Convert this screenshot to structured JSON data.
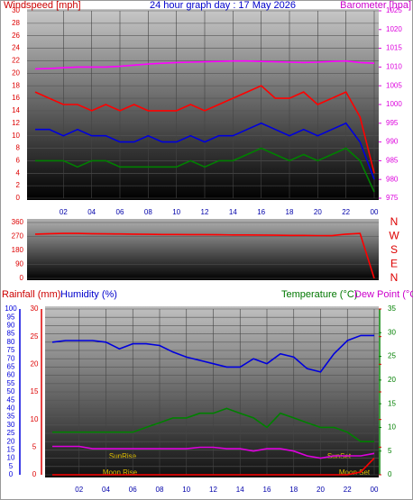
{
  "chart_data": [
    {
      "type": "line",
      "title": "24 hour graph day : 17 May 2026",
      "ylabel": "Windspeed [mph]",
      "y2label": "Barometer [hpa]",
      "x": [
        0,
        1,
        2,
        3,
        4,
        5,
        6,
        7,
        8,
        9,
        10,
        11,
        12,
        13,
        14,
        15,
        16,
        17,
        18,
        19,
        20,
        21,
        22,
        23,
        24
      ],
      "xlim": [
        0,
        24
      ],
      "xticks": [
        {
          "value": 2,
          "label": "02"
        },
        {
          "value": 4,
          "label": "04"
        },
        {
          "value": 6,
          "label": "06"
        },
        {
          "value": 8,
          "label": "08"
        },
        10,
        12,
        14,
        16,
        18,
        20,
        22,
        {
          "value": 24,
          "label": "00"
        }
      ],
      "ylim": [
        0,
        30
      ],
      "yticks": [
        0,
        2,
        4,
        6,
        8,
        10,
        12,
        14,
        16,
        18,
        20,
        22,
        24,
        26,
        28,
        30
      ],
      "y2lim": [
        975,
        1025
      ],
      "y2ticks": [
        975,
        980,
        985,
        990,
        995,
        1000,
        1005,
        1010,
        1015,
        1020,
        1025
      ],
      "series": [
        {
          "color": "#ff0000",
          "values": [
            17,
            16,
            15,
            15,
            14,
            15,
            14,
            15,
            14,
            14,
            14,
            15,
            14,
            15,
            16,
            17,
            18,
            16,
            16,
            17,
            15,
            16,
            17,
            13,
            4
          ]
        },
        {
          "color": "#0000dd",
          "values": [
            11,
            11,
            10,
            11,
            10,
            10,
            9,
            9,
            10,
            9,
            9,
            10,
            9,
            10,
            10,
            11,
            12,
            11,
            10,
            11,
            10,
            11,
            12,
            9,
            3
          ]
        },
        {
          "color": "#008000",
          "values": [
            6,
            6,
            6,
            5,
            6,
            6,
            5,
            5,
            5,
            5,
            5,
            6,
            5,
            6,
            6,
            7,
            8,
            7,
            6,
            7,
            6,
            7,
            8,
            6,
            1
          ]
        },
        {
          "color": "#ff00ff",
          "axis": "y2",
          "values": [
            1009.5,
            1009.6,
            1009.8,
            1010,
            1010,
            1010,
            1010.2,
            1010.5,
            1010.8,
            1011,
            1011.2,
            1011.3,
            1011.4,
            1011.5,
            1011.6,
            1011.6,
            1011.5,
            1011.4,
            1011.3,
            1011.2,
            1011.3,
            1011.5,
            1011.6,
            1011.2,
            1011
          ]
        }
      ]
    },
    {
      "type": "line",
      "x": [
        0,
        1,
        2,
        3,
        4,
        5,
        6,
        7,
        8,
        9,
        10,
        11,
        12,
        13,
        14,
        15,
        16,
        17,
        18,
        19,
        20,
        21,
        22,
        23,
        24
      ],
      "xlim": [
        0,
        24
      ],
      "ylim": [
        0,
        360
      ],
      "yticks": [
        0,
        90,
        180,
        270,
        360
      ],
      "compass": [
        "N",
        "W",
        "S",
        "E",
        "N"
      ],
      "series": [
        {
          "color": "#ff0000",
          "values": [
            285,
            288,
            290,
            290,
            288,
            287,
            286,
            285,
            284,
            283,
            283,
            282,
            282,
            281,
            280,
            280,
            279,
            278,
            277,
            277,
            276,
            275,
            285,
            290,
            0
          ]
        }
      ]
    },
    {
      "type": "line",
      "x": [
        0,
        1,
        2,
        3,
        4,
        5,
        6,
        7,
        8,
        9,
        10,
        11,
        12,
        13,
        14,
        15,
        16,
        17,
        18,
        19,
        20,
        21,
        22,
        23,
        24
      ],
      "xlim": [
        0,
        24
      ],
      "xticks": [
        {
          "value": 2,
          "label": "02"
        },
        {
          "value": 4,
          "label": "04"
        },
        {
          "value": 6,
          "label": "06"
        },
        {
          "value": 8,
          "label": "08"
        },
        10,
        12,
        14,
        16,
        18,
        20,
        22,
        {
          "value": 24,
          "label": "00"
        }
      ],
      "ylim": [
        0,
        100
      ],
      "yticks": [
        0,
        5,
        10,
        15,
        20,
        25,
        30,
        35,
        40,
        45,
        50,
        55,
        60,
        65,
        70,
        75,
        80,
        85,
        90,
        95,
        100
      ],
      "y2lim": [
        0,
        35
      ],
      "y2ticks": [
        0,
        5,
        10,
        15,
        20,
        25,
        30,
        35
      ],
      "y3lim": [
        0,
        30
      ],
      "y3ticks": [
        0,
        5,
        10,
        15,
        20,
        25,
        30
      ],
      "annotations": [
        "SunRise",
        "SunSet",
        "Moon Rise",
        "Moon Set"
      ],
      "series": [
        {
          "name": "Rainfall (mm)",
          "color": "#ff0000",
          "axis": "y3",
          "values": [
            0,
            0,
            0,
            0,
            0,
            0,
            0,
            0,
            0,
            0,
            0,
            0,
            0,
            0,
            0,
            0,
            0,
            0,
            0,
            0,
            0,
            0,
            0,
            0.5,
            3
          ]
        },
        {
          "name": "Humidity (%)",
          "color": "#0000dd",
          "values": [
            80,
            81,
            81,
            81,
            80,
            76,
            79,
            79,
            78,
            74,
            71,
            69,
            67,
            65,
            65,
            70,
            67,
            73,
            71,
            64,
            62,
            73,
            81,
            84,
            84
          ]
        },
        {
          "name": "Temperature (°C)",
          "color": "#008000",
          "axis": "y2",
          "values": [
            9,
            9,
            9,
            9,
            9,
            9,
            9,
            10,
            11,
            12,
            12,
            13,
            13,
            14,
            13,
            12,
            10,
            13,
            12,
            11,
            10,
            10,
            9,
            7,
            7
          ]
        },
        {
          "name": "Dew Point (°C)",
          "color": "#dd00dd",
          "axis": "y2",
          "values": [
            6,
            6,
            6,
            5.5,
            5.5,
            5.5,
            5.5,
            5.5,
            5.5,
            5.5,
            5.5,
            5.8,
            5.8,
            5.5,
            5.5,
            5,
            5.5,
            5.5,
            5,
            4,
            3.5,
            4,
            4,
            4,
            4.5
          ]
        }
      ]
    }
  ]
}
